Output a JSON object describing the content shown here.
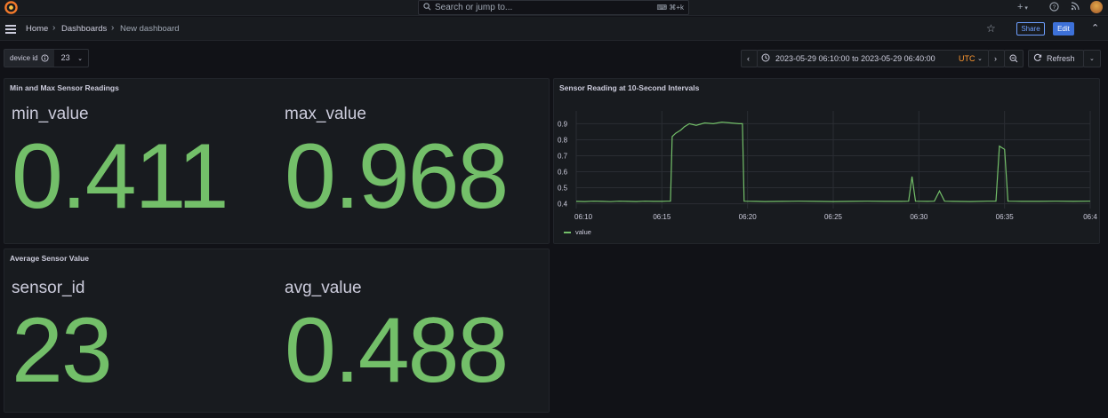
{
  "topbar": {
    "search_placeholder": "Search or jump to...",
    "search_shortcut": "⌘+k",
    "icons": [
      "grafana-logo-icon",
      "plus-icon",
      "help-icon",
      "rss-icon",
      "avatar"
    ]
  },
  "navbar": {
    "breadcrumbs": [
      "Home",
      "Dashboards",
      "New dashboard"
    ],
    "share_label": "Share",
    "edit_label": "Edit"
  },
  "variable": {
    "label": "device id",
    "value": "23"
  },
  "timepicker": {
    "range": "2023-05-29 06:10:00 to 2023-05-29 06:40:00",
    "timezone": "UTC",
    "refresh_label": "Refresh"
  },
  "colors": {
    "accent_green": "#73bf69",
    "primary_blue": "#3d71d9",
    "utc_orange": "#ff9830"
  },
  "panels": {
    "minmax": {
      "title": "Min and Max Sensor Readings",
      "stats": [
        {
          "label": "min_value",
          "value": "0.411"
        },
        {
          "label": "max_value",
          "value": "0.968"
        }
      ]
    },
    "average": {
      "title": "Average Sensor Value",
      "stats": [
        {
          "label": "sensor_id",
          "value": "23"
        },
        {
          "label": "avg_value",
          "value": "0.488"
        }
      ]
    },
    "timeseries": {
      "title": "Sensor Reading at 10-Second Intervals"
    }
  },
  "chart_data": {
    "type": "line",
    "title": "Sensor Reading at 10-Second Intervals",
    "series": [
      {
        "name": "value",
        "points": [
          [
            0,
            0.415
          ],
          [
            0.5,
            0.414
          ],
          [
            1,
            0.416
          ],
          [
            1.5,
            0.415
          ],
          [
            2,
            0.413
          ],
          [
            2.5,
            0.416
          ],
          [
            3,
            0.415
          ],
          [
            3.5,
            0.414
          ],
          [
            4,
            0.416
          ],
          [
            4.5,
            0.415
          ],
          [
            5,
            0.415
          ],
          [
            5.3,
            0.416
          ],
          [
            5.5,
            0.416
          ],
          [
            5.6,
            0.82
          ],
          [
            5.8,
            0.84
          ],
          [
            6.1,
            0.86
          ],
          [
            6.3,
            0.88
          ],
          [
            6.6,
            0.9
          ],
          [
            7,
            0.89
          ],
          [
            7.5,
            0.905
          ],
          [
            8,
            0.9
          ],
          [
            8.5,
            0.91
          ],
          [
            9,
            0.905
          ],
          [
            9.5,
            0.9
          ],
          [
            9.7,
            0.9
          ],
          [
            9.8,
            0.416
          ],
          [
            10.5,
            0.415
          ],
          [
            11,
            0.414
          ],
          [
            12,
            0.415
          ],
          [
            13,
            0.416
          ],
          [
            14,
            0.415
          ],
          [
            15,
            0.414
          ],
          [
            16,
            0.415
          ],
          [
            17,
            0.416
          ],
          [
            18,
            0.415
          ],
          [
            19,
            0.415
          ],
          [
            19.4,
            0.416
          ],
          [
            19.6,
            0.57
          ],
          [
            19.8,
            0.416
          ],
          [
            20.5,
            0.415
          ],
          [
            20.9,
            0.416
          ],
          [
            21.2,
            0.48
          ],
          [
            21.5,
            0.416
          ],
          [
            22,
            0.415
          ],
          [
            23,
            0.414
          ],
          [
            24,
            0.416
          ],
          [
            24.5,
            0.416
          ],
          [
            24.7,
            0.76
          ],
          [
            25,
            0.74
          ],
          [
            25.2,
            0.416
          ],
          [
            26,
            0.415
          ],
          [
            27,
            0.415
          ],
          [
            28,
            0.416
          ],
          [
            29,
            0.415
          ],
          [
            30,
            0.416
          ]
        ]
      }
    ],
    "x_ticks": [
      "06:10",
      "06:15",
      "06:20",
      "06:25",
      "06:30",
      "06:35",
      "06:4"
    ],
    "x_tick_minutes": [
      0,
      5,
      10,
      15,
      20,
      25,
      30
    ],
    "xlim": [
      0,
      30
    ],
    "y_ticks": [
      "0.4",
      "0.5",
      "0.6",
      "0.7",
      "0.8",
      "0.9"
    ],
    "ylim": [
      0.37,
      0.98
    ],
    "legend": [
      "value"
    ],
    "legend_placement": "bottom-left",
    "grid": true
  }
}
